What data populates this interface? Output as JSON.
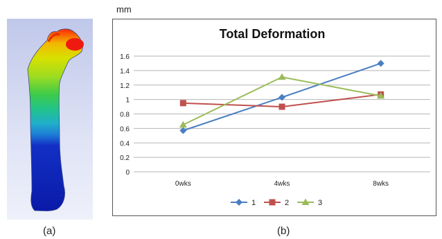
{
  "captions": {
    "a": "(a)",
    "b": "(b)"
  },
  "unit_label": "mm",
  "chart_data": {
    "type": "line",
    "title": "Total Deformation",
    "xlabel": "",
    "ylabel": "mm",
    "categories": [
      "0wks",
      "4wks",
      "8wks"
    ],
    "ylim": [
      0,
      1.6
    ],
    "yticks": [
      "0",
      "0.2",
      "0.4",
      "0.6",
      "0.8",
      "1",
      "1.2",
      "1.4",
      "1.6"
    ],
    "grid": true,
    "legend_position": "bottom",
    "series": [
      {
        "name": "1",
        "values": [
          0.57,
          1.03,
          1.5
        ],
        "color": "#4a7ec2",
        "marker": "diamond"
      },
      {
        "name": "2",
        "values": [
          0.95,
          0.9,
          1.07
        ],
        "color": "#c0504d",
        "marker": "square"
      },
      {
        "name": "3",
        "values": [
          0.65,
          1.31,
          1.05
        ],
        "color": "#9bbb59",
        "marker": "triangle"
      }
    ]
  }
}
